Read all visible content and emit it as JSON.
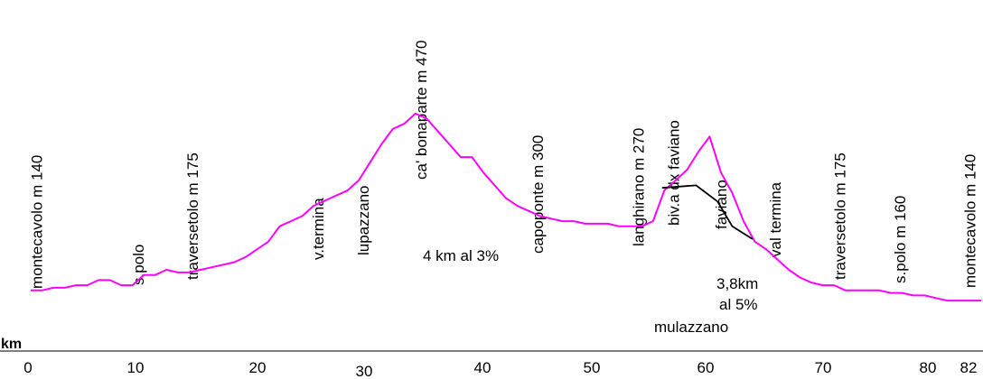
{
  "chart_data": {
    "type": "line",
    "xlabel": "km",
    "xlim": [
      0,
      84
    ],
    "ylim": [
      70,
      480
    ],
    "x_ticks": [
      {
        "value": 0,
        "label": "0"
      },
      {
        "value": 10,
        "label": "10"
      },
      {
        "value": 20,
        "label": "20"
      },
      {
        "value": 30,
        "label": "30"
      },
      {
        "value": 40,
        "label": "40"
      },
      {
        "value": 50,
        "label": "50"
      },
      {
        "value": 60,
        "label": "60"
      },
      {
        "value": 70,
        "label": "70"
      },
      {
        "value": 80,
        "label": "80"
      },
      {
        "value": 82,
        "label": "82"
      }
    ],
    "series": [
      {
        "color": "#ff00ff",
        "x": [
          0,
          1,
          2,
          3,
          4,
          5,
          6,
          7,
          8,
          9,
          10,
          11,
          12,
          13,
          14,
          15,
          16,
          17,
          18,
          19,
          20,
          21,
          22,
          23,
          24,
          25,
          26,
          27,
          28,
          29,
          30,
          31,
          32,
          33,
          34,
          35,
          36,
          37,
          38,
          39,
          40,
          41,
          42,
          43,
          44,
          45,
          46,
          47,
          48,
          49,
          50,
          51,
          52,
          53,
          54,
          55,
          56,
          57,
          58,
          59,
          60,
          61,
          62,
          63,
          64,
          65,
          66,
          67,
          68,
          69,
          70,
          71,
          72,
          73,
          74,
          75,
          76,
          77,
          78,
          79,
          80,
          81,
          82,
          83,
          84
        ],
        "y": [
          140,
          140,
          143,
          143,
          146,
          146,
          152,
          152,
          146,
          146,
          158,
          158,
          164,
          161,
          161,
          164,
          167,
          170,
          173,
          179,
          188,
          197,
          215,
          221,
          227,
          239,
          245,
          251,
          257,
          269,
          290,
          311,
          329,
          335,
          347,
          341,
          326,
          311,
          296,
          296,
          278,
          263,
          248,
          239,
          233,
          227,
          224,
          221,
          221,
          218,
          218,
          218,
          215,
          215,
          215,
          221,
          257,
          269,
          281,
          302,
          320,
          278,
          254,
          221,
          197,
          188,
          176,
          164,
          155,
          149,
          146,
          146,
          140,
          140,
          140,
          140,
          137,
          137,
          134,
          134,
          131,
          128,
          128,
          128,
          128
        ]
      },
      {
        "color": "#000000",
        "x": [
          55.8,
          58.8,
          60.7,
          62.0,
          63.8
        ],
        "y": [
          260,
          263,
          244,
          215,
          200
        ]
      }
    ],
    "point_labels": [
      {
        "x": 0.5,
        "text": "montecavolo m 140"
      },
      {
        "x": 9.5,
        "text": "s.polo"
      },
      {
        "x": 14.3,
        "text": "traversetolo m 175"
      },
      {
        "x": 25.4,
        "text": "v.termina"
      },
      {
        "x": 29.4,
        "text": "lupazzano"
      },
      {
        "x": 34.5,
        "text": "ca' bonaparte m 470"
      },
      {
        "x": 44.8,
        "text": "capoponte m 300"
      },
      {
        "x": 53.7,
        "text": "langhirano m 270"
      },
      {
        "x": 56.8,
        "text": "biv.a dx faviano"
      },
      {
        "x": 61.0,
        "text": "faviano"
      },
      {
        "x": 65.8,
        "text": "val termina"
      },
      {
        "x": 71.5,
        "text": "traversetolo m 175"
      },
      {
        "x": 76.8,
        "text": "s.polo m 160"
      },
      {
        "x": 83.0,
        "text": "montecavolo m 140"
      }
    ],
    "annotations": [
      {
        "text": "4 km al 3%"
      },
      {
        "text": "3,8km"
      },
      {
        "text": "al 5%"
      },
      {
        "text": "mulazzano"
      }
    ]
  }
}
